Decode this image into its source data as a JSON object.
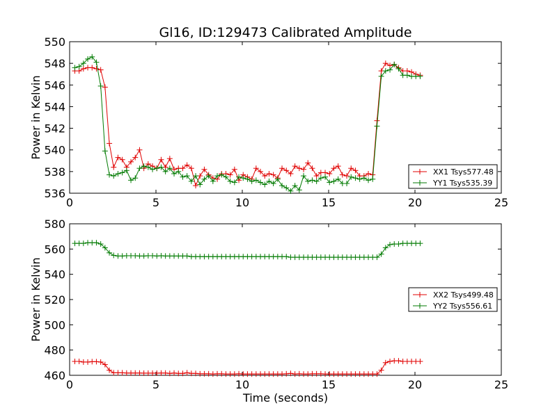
{
  "figure": {
    "title": "Gl16, ID:129473 Calibrated Amplitude"
  },
  "colors": {
    "xx": "#e00000",
    "yy": "#007a00"
  },
  "chart_data": [
    {
      "type": "line",
      "title": "Gl16, ID:129473 Calibrated Amplitude",
      "xlabel": "",
      "ylabel": "Power in Kelvin",
      "xlim": [
        0,
        25
      ],
      "ylim": [
        536,
        550
      ],
      "xticks": [
        "0",
        "5",
        "10",
        "15",
        "20",
        "25"
      ],
      "yticks": [
        "536",
        "538",
        "540",
        "542",
        "544",
        "546",
        "548",
        "550"
      ],
      "legend_position": "lower-right",
      "grid": false,
      "x": [
        0.3,
        0.55,
        0.8,
        1.05,
        1.3,
        1.55,
        1.8,
        2.05,
        2.3,
        2.55,
        2.8,
        3.05,
        3.3,
        3.55,
        3.8,
        4.05,
        4.3,
        4.55,
        4.8,
        5.05,
        5.3,
        5.55,
        5.8,
        6.05,
        6.3,
        6.55,
        6.8,
        7.05,
        7.3,
        7.55,
        7.8,
        8.05,
        8.3,
        8.55,
        8.8,
        9.05,
        9.3,
        9.55,
        9.8,
        10.05,
        10.3,
        10.55,
        10.8,
        11.05,
        11.3,
        11.55,
        11.8,
        12.05,
        12.3,
        12.55,
        12.8,
        13.05,
        13.3,
        13.55,
        13.8,
        14.05,
        14.3,
        14.55,
        14.8,
        15.05,
        15.3,
        15.55,
        15.8,
        16.05,
        16.3,
        16.55,
        16.8,
        17.05,
        17.3,
        17.55,
        17.8,
        18.05,
        18.3,
        18.55,
        18.8,
        19.05,
        19.3,
        19.55,
        19.8,
        20.05,
        20.3
      ],
      "series": [
        {
          "name": "XX1 Tsys577.48",
          "color_key": "xx",
          "values": [
            547.3,
            547.3,
            547.5,
            547.6,
            547.6,
            547.5,
            547.4,
            545.8,
            540.6,
            538.4,
            539.3,
            539.1,
            538.4,
            538.9,
            539.3,
            540.0,
            538.3,
            538.7,
            538.5,
            538.3,
            539.1,
            538.4,
            539.2,
            538.2,
            538.3,
            538.3,
            538.6,
            538.3,
            536.7,
            537.6,
            538.2,
            537.7,
            537.4,
            537.3,
            537.8,
            537.8,
            537.7,
            538.2,
            537.2,
            537.7,
            537.5,
            537.3,
            538.3,
            538.0,
            537.6,
            537.8,
            537.7,
            537.4,
            538.3,
            538.1,
            537.8,
            538.5,
            538.3,
            538.2,
            538.8,
            538.3,
            537.6,
            537.9,
            537.9,
            537.8,
            538.3,
            538.5,
            537.7,
            537.6,
            538.3,
            538.1,
            537.6,
            537.6,
            537.8,
            537.7,
            542.7,
            547.3,
            548.0,
            547.8,
            547.9,
            547.6,
            547.3,
            547.3,
            547.2,
            547.0,
            546.9
          ]
        },
        {
          "name": "YY1 Tsys535.39",
          "color_key": "yy",
          "values": [
            547.6,
            547.7,
            548.0,
            548.4,
            548.6,
            548.1,
            545.9,
            539.9,
            537.7,
            537.6,
            537.8,
            537.9,
            538.1,
            537.2,
            537.4,
            538.3,
            538.5,
            538.4,
            538.2,
            538.3,
            538.4,
            538.0,
            538.3,
            537.8,
            538.0,
            537.5,
            537.6,
            537.1,
            537.6,
            536.8,
            537.3,
            537.6,
            537.1,
            537.6,
            537.7,
            537.5,
            537.1,
            537.0,
            537.5,
            537.4,
            537.3,
            537.1,
            537.2,
            537.0,
            536.8,
            537.1,
            536.9,
            537.3,
            536.7,
            536.5,
            536.2,
            536.7,
            536.3,
            537.6,
            537.1,
            537.2,
            537.1,
            537.4,
            537.5,
            537.0,
            537.1,
            537.3,
            536.9,
            536.9,
            537.5,
            537.4,
            537.3,
            537.4,
            537.2,
            537.3,
            542.2,
            546.8,
            547.3,
            547.4,
            547.9,
            547.5,
            546.9,
            546.9,
            546.8,
            546.8,
            546.8
          ]
        }
      ]
    },
    {
      "type": "line",
      "title": "",
      "xlabel": "Time (seconds)",
      "ylabel": "Power in Kelvin",
      "xlim": [
        0,
        25
      ],
      "ylim": [
        460,
        580
      ],
      "xticks": [
        "0",
        "5",
        "10",
        "15",
        "20",
        "25"
      ],
      "yticks": [
        "460",
        "480",
        "500",
        "520",
        "540",
        "560",
        "580"
      ],
      "legend_position": "center-right",
      "grid": false,
      "x": [
        0.3,
        0.55,
        0.8,
        1.05,
        1.3,
        1.55,
        1.8,
        2.05,
        2.3,
        2.55,
        2.8,
        3.05,
        3.3,
        3.55,
        3.8,
        4.05,
        4.3,
        4.55,
        4.8,
        5.05,
        5.3,
        5.55,
        5.8,
        6.05,
        6.3,
        6.55,
        6.8,
        7.05,
        7.3,
        7.55,
        7.8,
        8.05,
        8.3,
        8.55,
        8.8,
        9.05,
        9.3,
        9.55,
        9.8,
        10.05,
        10.3,
        10.55,
        10.8,
        11.05,
        11.3,
        11.55,
        11.8,
        12.05,
        12.3,
        12.55,
        12.8,
        13.05,
        13.3,
        13.55,
        13.8,
        14.05,
        14.3,
        14.55,
        14.8,
        15.05,
        15.3,
        15.55,
        15.8,
        16.05,
        16.3,
        16.55,
        16.8,
        17.05,
        17.3,
        17.55,
        17.8,
        18.05,
        18.3,
        18.55,
        18.8,
        19.05,
        19.3,
        19.55,
        19.8,
        20.05,
        20.3
      ],
      "series": [
        {
          "name": "XX2 Tsys499.48",
          "color_key": "xx",
          "values": [
            471,
            471,
            470.5,
            470.5,
            470.8,
            470.8,
            470.5,
            468.5,
            464,
            462,
            462,
            462,
            461.8,
            461.8,
            461.8,
            461.8,
            461.7,
            461.7,
            461.7,
            461.7,
            461.8,
            461.8,
            461.5,
            461.8,
            461.5,
            461.5,
            462,
            461.5,
            461.5,
            461.2,
            461.2,
            461.2,
            461,
            461.2,
            461.2,
            461,
            461,
            461,
            461.2,
            461,
            461,
            461,
            461,
            461,
            461,
            461,
            461,
            461,
            461,
            461.2,
            461.5,
            461,
            461.2,
            461,
            461,
            461.2,
            461.2,
            461.2,
            461,
            461,
            461,
            461,
            461,
            461,
            461,
            461,
            461,
            461,
            461,
            461,
            461,
            464,
            470,
            471,
            471.5,
            471.5,
            471,
            471,
            471,
            471,
            471
          ]
        },
        {
          "name": "YY2 Tsys556.61",
          "color_key": "yy",
          "values": [
            564.5,
            564.5,
            564.5,
            565,
            565,
            565,
            564,
            561,
            557,
            555,
            554.5,
            554.5,
            554.7,
            554.7,
            554.7,
            554.5,
            554.5,
            554.7,
            554.7,
            554.5,
            554.7,
            554.5,
            554.5,
            554.5,
            554.5,
            554.5,
            554.5,
            554,
            554,
            554,
            554,
            554,
            554,
            554,
            554,
            554,
            554,
            554,
            554,
            554,
            554,
            554,
            554,
            554,
            554,
            554,
            554,
            554,
            554,
            554,
            553.5,
            553.5,
            553.5,
            553.5,
            553.5,
            553.5,
            553.5,
            553.5,
            553.5,
            553.5,
            553.5,
            553.5,
            553.5,
            553.5,
            553.5,
            553.5,
            553.5,
            553.5,
            553.5,
            553.5,
            553.5,
            556,
            561,
            563.5,
            564,
            564,
            564.5,
            564.5,
            564.5,
            564.5,
            564.5
          ]
        }
      ]
    }
  ]
}
